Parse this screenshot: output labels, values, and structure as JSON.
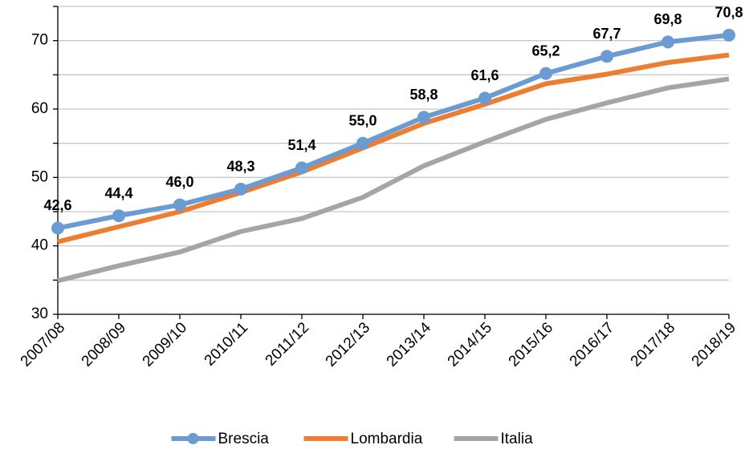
{
  "chart_data": {
    "type": "line",
    "categories": [
      "2007/08",
      "2008/09",
      "2009/10",
      "2010/11",
      "2011/12",
      "2012/13",
      "2013/14",
      "2014/15",
      "2015/16",
      "2016/17",
      "2017/18",
      "2018/19"
    ],
    "series": [
      {
        "name": "Brescia",
        "color": "#6a9bd3",
        "markers": true,
        "values": [
          42.6,
          44.4,
          46.0,
          48.3,
          51.4,
          55.0,
          58.8,
          61.6,
          65.2,
          67.7,
          69.8,
          70.8
        ],
        "value_labels": [
          "42,6",
          "44,4",
          "46,0",
          "48,3",
          "51,4",
          "55,0",
          "58,8",
          "61,6",
          "65,2",
          "67,7",
          "69,8",
          "70,8"
        ]
      },
      {
        "name": "Lombardia",
        "color": "#ed7d31",
        "markers": false,
        "values": [
          40.6,
          42.8,
          45.0,
          47.8,
          50.8,
          54.3,
          57.9,
          60.7,
          63.7,
          65.1,
          66.8,
          67.9
        ]
      },
      {
        "name": "Italia",
        "color": "#a5a5a5",
        "markers": false,
        "values": [
          34.9,
          37.1,
          39.1,
          42.1,
          44.0,
          47.1,
          51.7,
          55.2,
          58.5,
          60.9,
          63.1,
          64.4
        ]
      }
    ],
    "ylim": [
      30,
      75
    ],
    "yticks": [
      30,
      40,
      50,
      60,
      70
    ],
    "minor_yticks": [
      35,
      45,
      55,
      65,
      75
    ],
    "grid": true,
    "legend": "bottom"
  }
}
